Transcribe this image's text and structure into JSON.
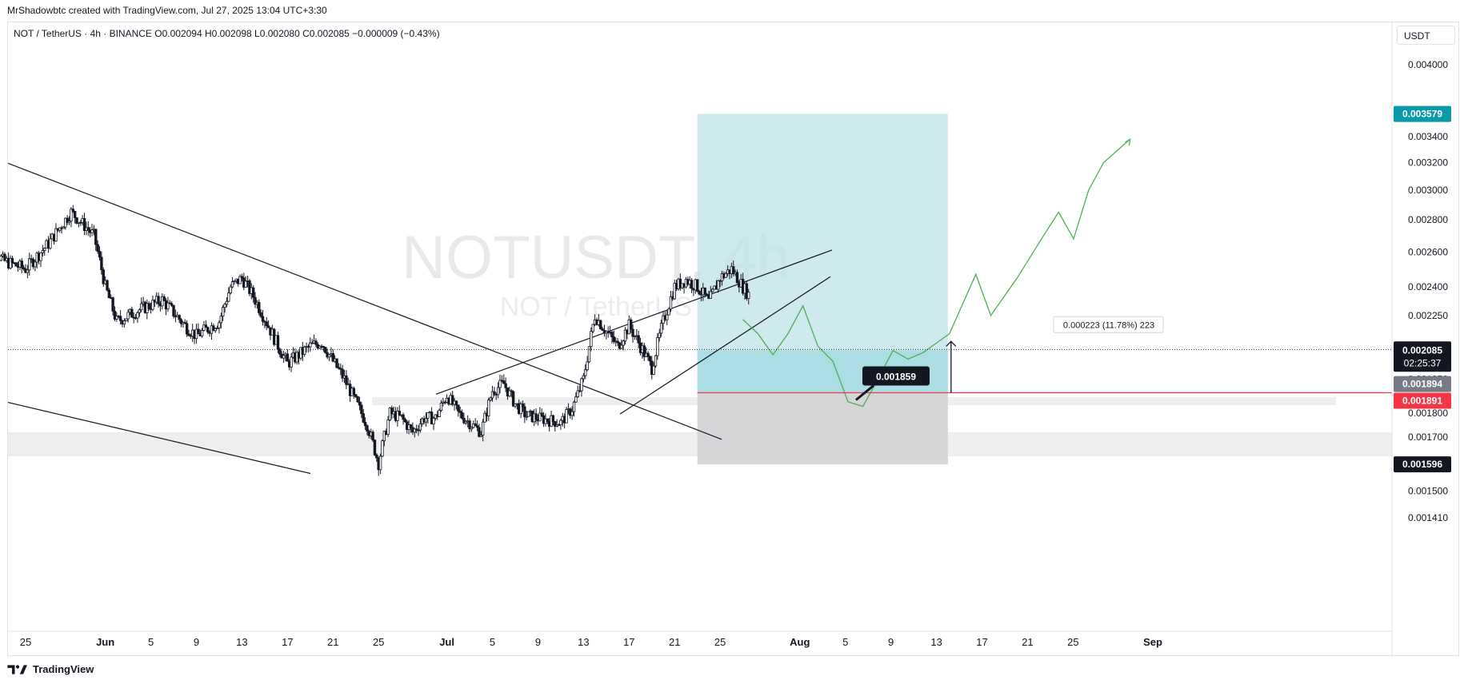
{
  "header": {
    "created_by": "MrShadowbtc created with TradingView.com, Jul 27, 2025 13:04 UTC+3:30",
    "symbol_line": "NOT / TetherUS · 4h · BINANCE  O0.002094  H0.002098  L0.002080  C0.002085  −0.000009 (−0.43%)",
    "currency_button": "USDT"
  },
  "watermark": {
    "main": "NOTUSDT, 4h",
    "sub": "NOT / TetherUS"
  },
  "footer": {
    "brand": "TradingView",
    "logo_icon": "tradingview-logo-icon"
  },
  "colors": {
    "teal_label": "#089aa8",
    "red_label": "#f23645",
    "dark_label": "#131722",
    "gray_label": "#787b86",
    "target_zone": "#bde3ea",
    "stop_zone": "#d6d6d8",
    "projection": "#4caf50",
    "candle": "#131722",
    "red_line": "#f23645"
  },
  "chart_data": {
    "type": "candlestick",
    "timeframe": "4h",
    "price_axis_ticks": [
      "0.004000",
      "0.003400",
      "0.003200",
      "0.003000",
      "0.002800",
      "0.002600",
      "0.002400",
      "0.002250",
      "0.001950",
      "0.001800",
      "0.001700",
      "0.001500",
      "0.001410"
    ],
    "time_axis_ticks": [
      "25",
      "Jun",
      "5",
      "9",
      "13",
      "17",
      "21",
      "25",
      "Jul",
      "5",
      "9",
      "13",
      "17",
      "21",
      "25",
      "Aug",
      "5",
      "9",
      "13",
      "17",
      "21",
      "25",
      "Sep"
    ],
    "last_price": {
      "value": "0.002085",
      "countdown": "02:25:37"
    },
    "price_labels": [
      {
        "text": "0.003579",
        "price": 0.003579,
        "color": "#089aa8"
      },
      {
        "text": "0.001894",
        "price": 0.001894,
        "color": "#787b86"
      },
      {
        "text": "0.001891",
        "price": 0.001891,
        "color": "#f23645"
      },
      {
        "text": "0.001596",
        "price": 0.001596,
        "color": "#131722"
      }
    ],
    "entry_label": "0.001859",
    "measure_label": "0.000223 (11.78%) 223",
    "long_position": {
      "entry": 0.001891,
      "target": 0.003579,
      "stop": 0.001596,
      "start_date": "2025-07-23",
      "end_date": "2025-08-14"
    },
    "last_close_date": "2025-07-27",
    "ohlc_last": {
      "open": 0.002094,
      "high": 0.002098,
      "low": 0.00208,
      "close": 0.002085
    },
    "price_path": [
      [
        "2025-05-21",
        0.0027
      ],
      [
        "2025-05-23",
        0.00255
      ],
      [
        "2025-05-25",
        0.0025
      ],
      [
        "2025-05-27",
        0.00265
      ],
      [
        "2025-05-29",
        0.00285
      ],
      [
        "2025-05-31",
        0.0027
      ],
      [
        "2025-06-01",
        0.0024
      ],
      [
        "2025-06-02",
        0.00222
      ],
      [
        "2025-06-04",
        0.00228
      ],
      [
        "2025-06-06",
        0.00233
      ],
      [
        "2025-06-08",
        0.0022
      ],
      [
        "2025-06-09",
        0.00215
      ],
      [
        "2025-06-11",
        0.00222
      ],
      [
        "2025-06-12",
        0.0024
      ],
      [
        "2025-06-13",
        0.00245
      ],
      [
        "2025-06-14",
        0.00235
      ],
      [
        "2025-06-16",
        0.00212
      ],
      [
        "2025-06-17",
        0.00202
      ],
      [
        "2025-06-19",
        0.0021
      ],
      [
        "2025-06-20",
        0.00212
      ],
      [
        "2025-06-21",
        0.00203
      ],
      [
        "2025-06-22",
        0.00195
      ],
      [
        "2025-06-23",
        0.00185
      ],
      [
        "2025-06-24",
        0.00175
      ],
      [
        "2025-06-25",
        0.0016
      ],
      [
        "2025-06-26",
        0.0018
      ],
      [
        "2025-06-27",
        0.00178
      ],
      [
        "2025-06-28",
        0.00172
      ],
      [
        "2025-06-29",
        0.00178
      ],
      [
        "2025-06-30",
        0.00178
      ],
      [
        "2025-07-01",
        0.00188
      ],
      [
        "2025-07-02",
        0.0018
      ],
      [
        "2025-07-03",
        0.00176
      ],
      [
        "2025-07-04",
        0.00172
      ],
      [
        "2025-07-05",
        0.0019
      ],
      [
        "2025-07-06",
        0.00193
      ],
      [
        "2025-07-07",
        0.00184
      ],
      [
        "2025-07-08",
        0.00179
      ],
      [
        "2025-07-10",
        0.00177
      ],
      [
        "2025-07-11",
        0.00176
      ],
      [
        "2025-07-12",
        0.00182
      ],
      [
        "2025-07-13",
        0.00195
      ],
      [
        "2025-07-14",
        0.00225
      ],
      [
        "2025-07-15",
        0.00217
      ],
      [
        "2025-07-16",
        0.0021
      ],
      [
        "2025-07-17",
        0.0022
      ],
      [
        "2025-07-18",
        0.0021
      ],
      [
        "2025-07-19",
        0.002
      ],
      [
        "2025-07-20",
        0.00222
      ],
      [
        "2025-07-21",
        0.0024
      ],
      [
        "2025-07-22",
        0.00244
      ],
      [
        "2025-07-23",
        0.0024
      ],
      [
        "2025-07-24",
        0.00232
      ],
      [
        "2025-07-25",
        0.00245
      ],
      [
        "2025-07-26",
        0.0025
      ],
      [
        "2025-07-27",
        0.0024
      ],
      [
        "2025-07-28",
        0.00232
      ],
      [
        "2025-07-29",
        0.00218
      ],
      [
        "2025-07-30",
        0.00195
      ],
      [
        "2025-07-31",
        0.00198
      ],
      [
        "2025-08-01",
        0.00205
      ],
      [
        "2025-08-02",
        0.00208
      ],
      [
        "2025-08-03",
        0.00208
      ]
    ],
    "projection_path": [
      [
        "2025-08-03",
        0.00223
      ],
      [
        "2025-08-04",
        0.00216
      ],
      [
        "2025-08-05",
        0.00206
      ],
      [
        "2025-08-06",
        0.00216
      ],
      [
        "2025-08-07",
        0.0023
      ],
      [
        "2025-08-08",
        0.0021
      ],
      [
        "2025-08-09",
        0.00203
      ],
      [
        "2025-08-10",
        0.00185
      ],
      [
        "2025-08-11",
        0.00183
      ],
      [
        "2025-08-12",
        0.00195
      ],
      [
        "2025-08-13",
        0.00208
      ],
      [
        "2025-08-14",
        0.00204
      ],
      [
        "2025-08-15",
        0.00207
      ],
      [
        "2025-08-17",
        0.00216
      ],
      [
        "2025-08-19",
        0.00247
      ],
      [
        "2025-08-20",
        0.00225
      ],
      [
        "2025-08-22",
        0.00245
      ],
      [
        "2025-08-24",
        0.0027
      ],
      [
        "2025-08-25",
        0.00285
      ],
      [
        "2025-08-26",
        0.00268
      ],
      [
        "2025-08-27",
        0.003
      ],
      [
        "2025-08-28",
        0.0032
      ],
      [
        "2025-08-30",
        0.00338
      ]
    ]
  }
}
